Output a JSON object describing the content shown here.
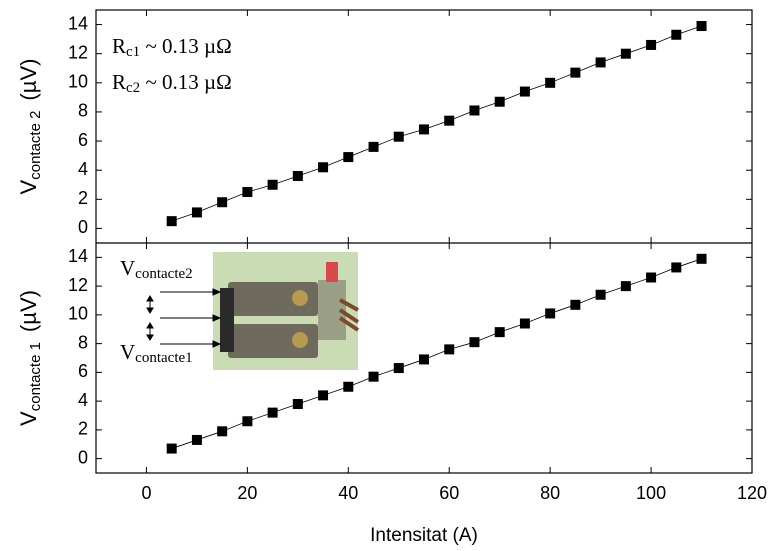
{
  "chart_data": [
    {
      "type": "scatter",
      "y_label": {
        "main": "V",
        "sub": "contacte 2",
        "unit": "(µV)"
      },
      "annotations": [
        {
          "main": "R",
          "sub": "c1",
          "rest": " ~ 0.13 µΩ"
        },
        {
          "main": "R",
          "sub": "c2",
          "rest": " ~ 0.13 µΩ"
        }
      ],
      "ylim": [
        -1,
        15
      ],
      "yticks": [
        0,
        2,
        4,
        6,
        8,
        10,
        12,
        14
      ],
      "series": [
        {
          "color": "#000000",
          "x": [
            5,
            10,
            15,
            20,
            25,
            30,
            35,
            40,
            45,
            50,
            55,
            60,
            65,
            70,
            75,
            80,
            85,
            90,
            95,
            100,
            105,
            110
          ],
          "values": [
            0.5,
            1.1,
            1.8,
            2.5,
            3.0,
            3.6,
            4.2,
            4.9,
            5.6,
            6.3,
            6.8,
            7.4,
            8.1,
            8.7,
            9.4,
            10.0,
            10.7,
            11.4,
            12.0,
            12.6,
            13.3,
            13.9
          ]
        }
      ]
    },
    {
      "type": "scatter",
      "y_label": {
        "main": "V",
        "sub": "contacte 1",
        "unit": "(µV)"
      },
      "x_label": "Intensitat (A)",
      "inset_labels": [
        {
          "main": "V",
          "sub": "contacte2"
        },
        {
          "main": "V",
          "sub": "contacte1"
        }
      ],
      "xlim": [
        -10,
        120
      ],
      "xticks": [
        0,
        20,
        40,
        60,
        80,
        100,
        120
      ],
      "ylim": [
        -1,
        15
      ],
      "yticks": [
        0,
        2,
        4,
        6,
        8,
        10,
        12,
        14
      ],
      "series": [
        {
          "color": "#000000",
          "x": [
            5,
            10,
            15,
            20,
            25,
            30,
            35,
            40,
            45,
            50,
            55,
            60,
            65,
            70,
            75,
            80,
            85,
            90,
            95,
            100,
            105,
            110
          ],
          "values": [
            0.7,
            1.3,
            1.9,
            2.6,
            3.2,
            3.8,
            4.4,
            5.0,
            5.7,
            6.3,
            6.9,
            7.6,
            8.1,
            8.8,
            9.4,
            10.1,
            10.7,
            11.4,
            12.0,
            12.6,
            13.3,
            13.9
          ]
        }
      ]
    }
  ]
}
